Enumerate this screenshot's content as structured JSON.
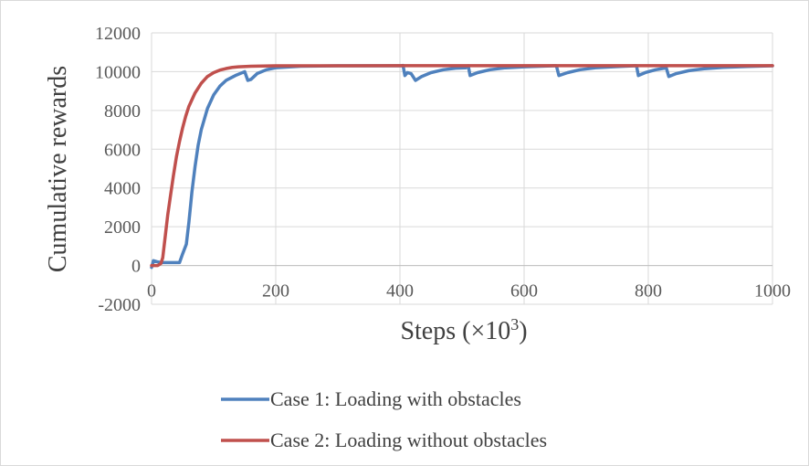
{
  "chart_data": {
    "type": "line",
    "xlabel": "Steps (×10³)",
    "xlabel_main": "Steps (",
    "xlabel_times": "×",
    "xlabel_base": "10",
    "xlabel_exp": "3",
    "xlabel_close": ")",
    "ylabel": "Cumulative rewards",
    "xlim": [
      0,
      1000
    ],
    "ylim": [
      -2000,
      12000
    ],
    "xticks": [
      0,
      200,
      400,
      600,
      800,
      1000
    ],
    "yticks": [
      -2000,
      0,
      2000,
      4000,
      6000,
      8000,
      10000,
      12000
    ],
    "xtick_labels": [
      "0",
      "200",
      "400",
      "600",
      "800",
      "1000"
    ],
    "ytick_labels": [
      "-2000",
      "0",
      "2000",
      "4000",
      "6000",
      "8000",
      "10000",
      "12000"
    ],
    "grid": true,
    "legend_position": "bottom",
    "series": [
      {
        "name": "Case 1: Loading with obstacles",
        "color": "#4f81bd",
        "points": [
          [
            0,
            -100
          ],
          [
            3,
            250
          ],
          [
            8,
            200
          ],
          [
            15,
            150
          ],
          [
            25,
            150
          ],
          [
            35,
            150
          ],
          [
            45,
            150
          ],
          [
            50,
            600
          ],
          [
            56,
            1100
          ],
          [
            60,
            2200
          ],
          [
            65,
            3800
          ],
          [
            70,
            5100
          ],
          [
            75,
            6200
          ],
          [
            80,
            7000
          ],
          [
            90,
            8100
          ],
          [
            100,
            8800
          ],
          [
            110,
            9250
          ],
          [
            120,
            9550
          ],
          [
            135,
            9800
          ],
          [
            150,
            10000
          ],
          [
            155,
            9550
          ],
          [
            160,
            9600
          ],
          [
            170,
            9900
          ],
          [
            185,
            10100
          ],
          [
            200,
            10200
          ],
          [
            240,
            10280
          ],
          [
            300,
            10300
          ],
          [
            400,
            10300
          ],
          [
            405,
            10320
          ],
          [
            408,
            9800
          ],
          [
            412,
            9950
          ],
          [
            418,
            9900
          ],
          [
            425,
            9550
          ],
          [
            435,
            9750
          ],
          [
            450,
            9950
          ],
          [
            470,
            10100
          ],
          [
            490,
            10180
          ],
          [
            506,
            10200
          ],
          [
            510,
            10300
          ],
          [
            513,
            9800
          ],
          [
            525,
            9950
          ],
          [
            545,
            10100
          ],
          [
            570,
            10200
          ],
          [
            600,
            10250
          ],
          [
            648,
            10300
          ],
          [
            652,
            10300
          ],
          [
            656,
            9800
          ],
          [
            670,
            9950
          ],
          [
            690,
            10100
          ],
          [
            715,
            10200
          ],
          [
            750,
            10260
          ],
          [
            778,
            10300
          ],
          [
            781,
            10300
          ],
          [
            784,
            9800
          ],
          [
            795,
            9950
          ],
          [
            812,
            10100
          ],
          [
            826,
            10180
          ],
          [
            828,
            10300
          ],
          [
            833,
            9750
          ],
          [
            845,
            9900
          ],
          [
            865,
            10050
          ],
          [
            890,
            10150
          ],
          [
            920,
            10220
          ],
          [
            960,
            10270
          ],
          [
            1000,
            10300
          ]
        ]
      },
      {
        "name": "Case 2: Loading without obstacles",
        "color": "#c0504d",
        "points": [
          [
            0,
            0
          ],
          [
            10,
            0
          ],
          [
            15,
            100
          ],
          [
            18,
            400
          ],
          [
            22,
            1500
          ],
          [
            26,
            2600
          ],
          [
            30,
            3500
          ],
          [
            35,
            4600
          ],
          [
            40,
            5600
          ],
          [
            45,
            6400
          ],
          [
            50,
            7100
          ],
          [
            55,
            7700
          ],
          [
            60,
            8200
          ],
          [
            70,
            8900
          ],
          [
            80,
            9400
          ],
          [
            90,
            9750
          ],
          [
            100,
            9950
          ],
          [
            110,
            10080
          ],
          [
            120,
            10160
          ],
          [
            130,
            10220
          ],
          [
            140,
            10250
          ],
          [
            160,
            10280
          ],
          [
            200,
            10300
          ],
          [
            300,
            10300
          ],
          [
            400,
            10310
          ],
          [
            600,
            10310
          ],
          [
            800,
            10310
          ],
          [
            1000,
            10310
          ]
        ]
      }
    ]
  }
}
